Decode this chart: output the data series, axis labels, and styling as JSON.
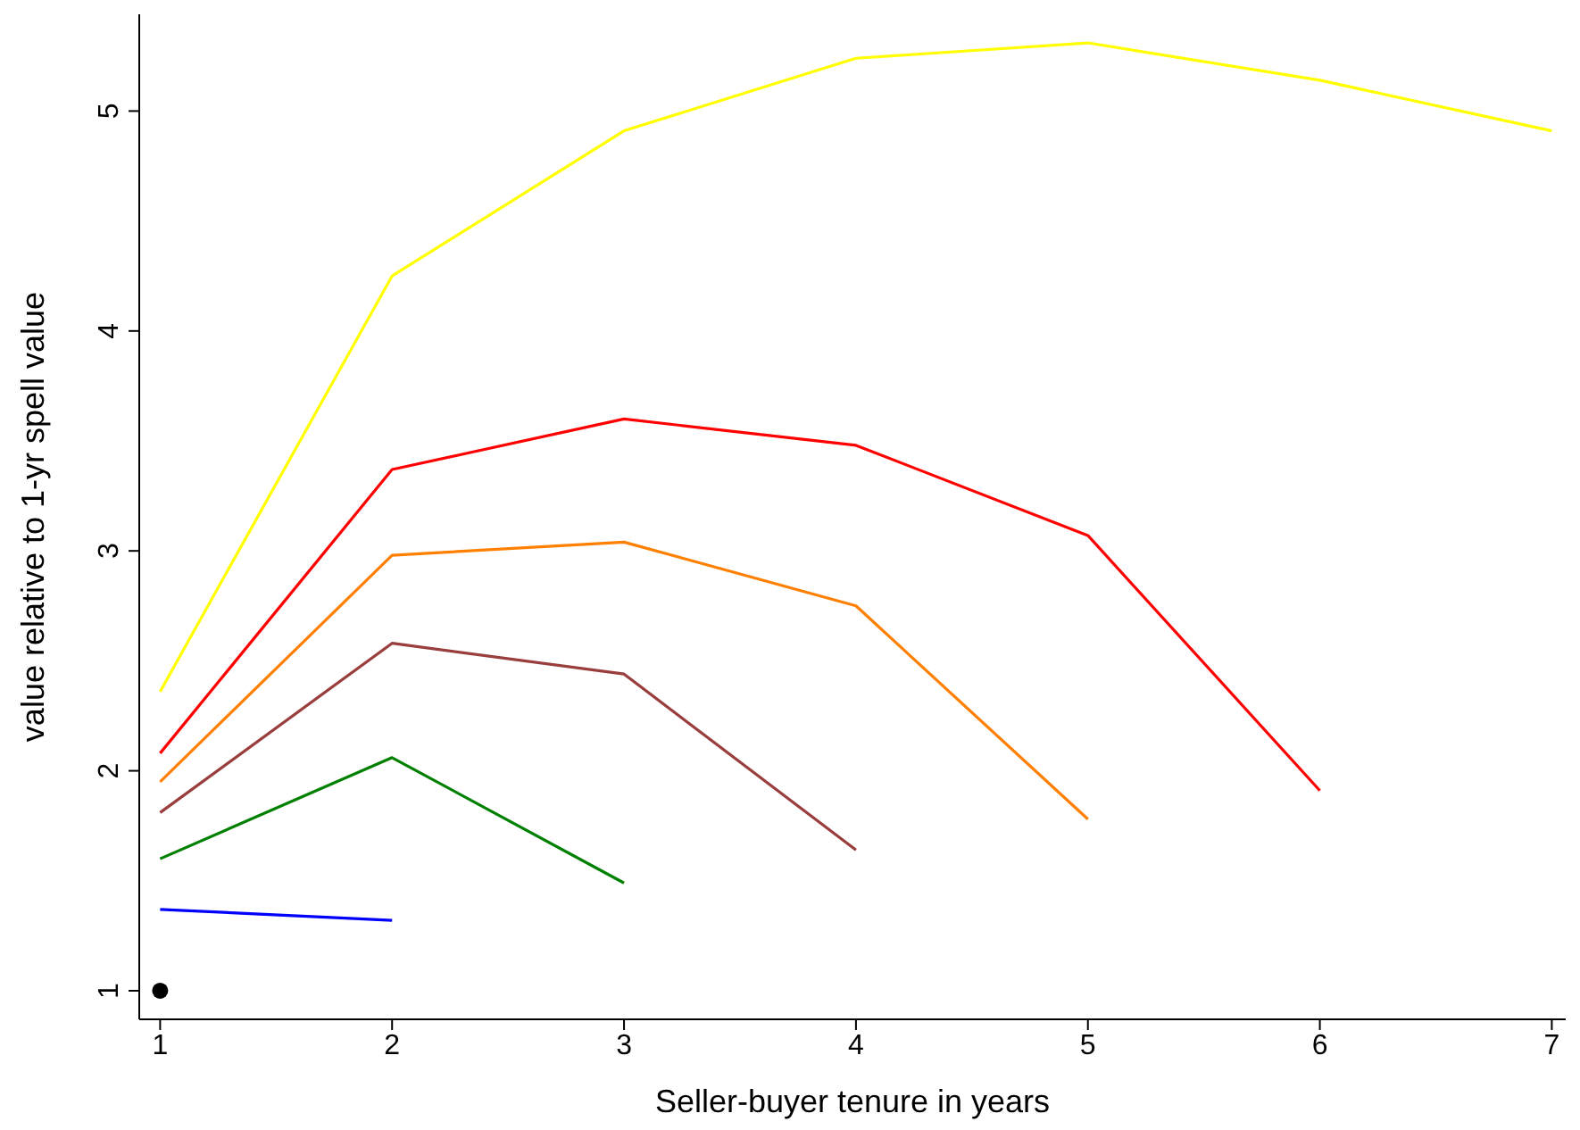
{
  "chart_data": {
    "type": "line",
    "xlabel": "Seller-buyer tenure in years",
    "ylabel": "value relative to 1-yr spell value",
    "x": [
      1,
      2,
      3,
      4,
      5,
      6,
      7
    ],
    "series": [
      {
        "color": "#0000ff",
        "values": [
          1.37,
          1.32,
          null,
          null,
          null,
          null,
          null
        ]
      },
      {
        "color": "#008000",
        "values": [
          1.6,
          2.06,
          1.49,
          null,
          null,
          null,
          null
        ]
      },
      {
        "color": "#993d3d",
        "values": [
          1.81,
          2.58,
          2.44,
          1.64,
          null,
          null,
          null
        ]
      },
      {
        "color": "#ff8000",
        "values": [
          1.95,
          2.98,
          3.04,
          2.75,
          1.78,
          null,
          null
        ]
      },
      {
        "color": "#ff0000",
        "values": [
          2.08,
          3.37,
          3.6,
          3.48,
          3.07,
          1.91,
          null
        ]
      },
      {
        "color": "#ffff00",
        "values": [
          2.36,
          4.25,
          4.91,
          5.24,
          5.31,
          5.14,
          4.91
        ]
      },
      {
        "type": "scatter",
        "color": "#000000",
        "x": [
          1
        ],
        "values": [
          1
        ]
      }
    ],
    "xlim": [
      0.91,
      7.06
    ],
    "xticks": [
      1,
      2,
      3,
      4,
      5,
      6,
      7
    ],
    "ylim": [
      0.87,
      5.44
    ],
    "yticks": [
      1,
      2,
      3,
      4,
      5
    ]
  }
}
